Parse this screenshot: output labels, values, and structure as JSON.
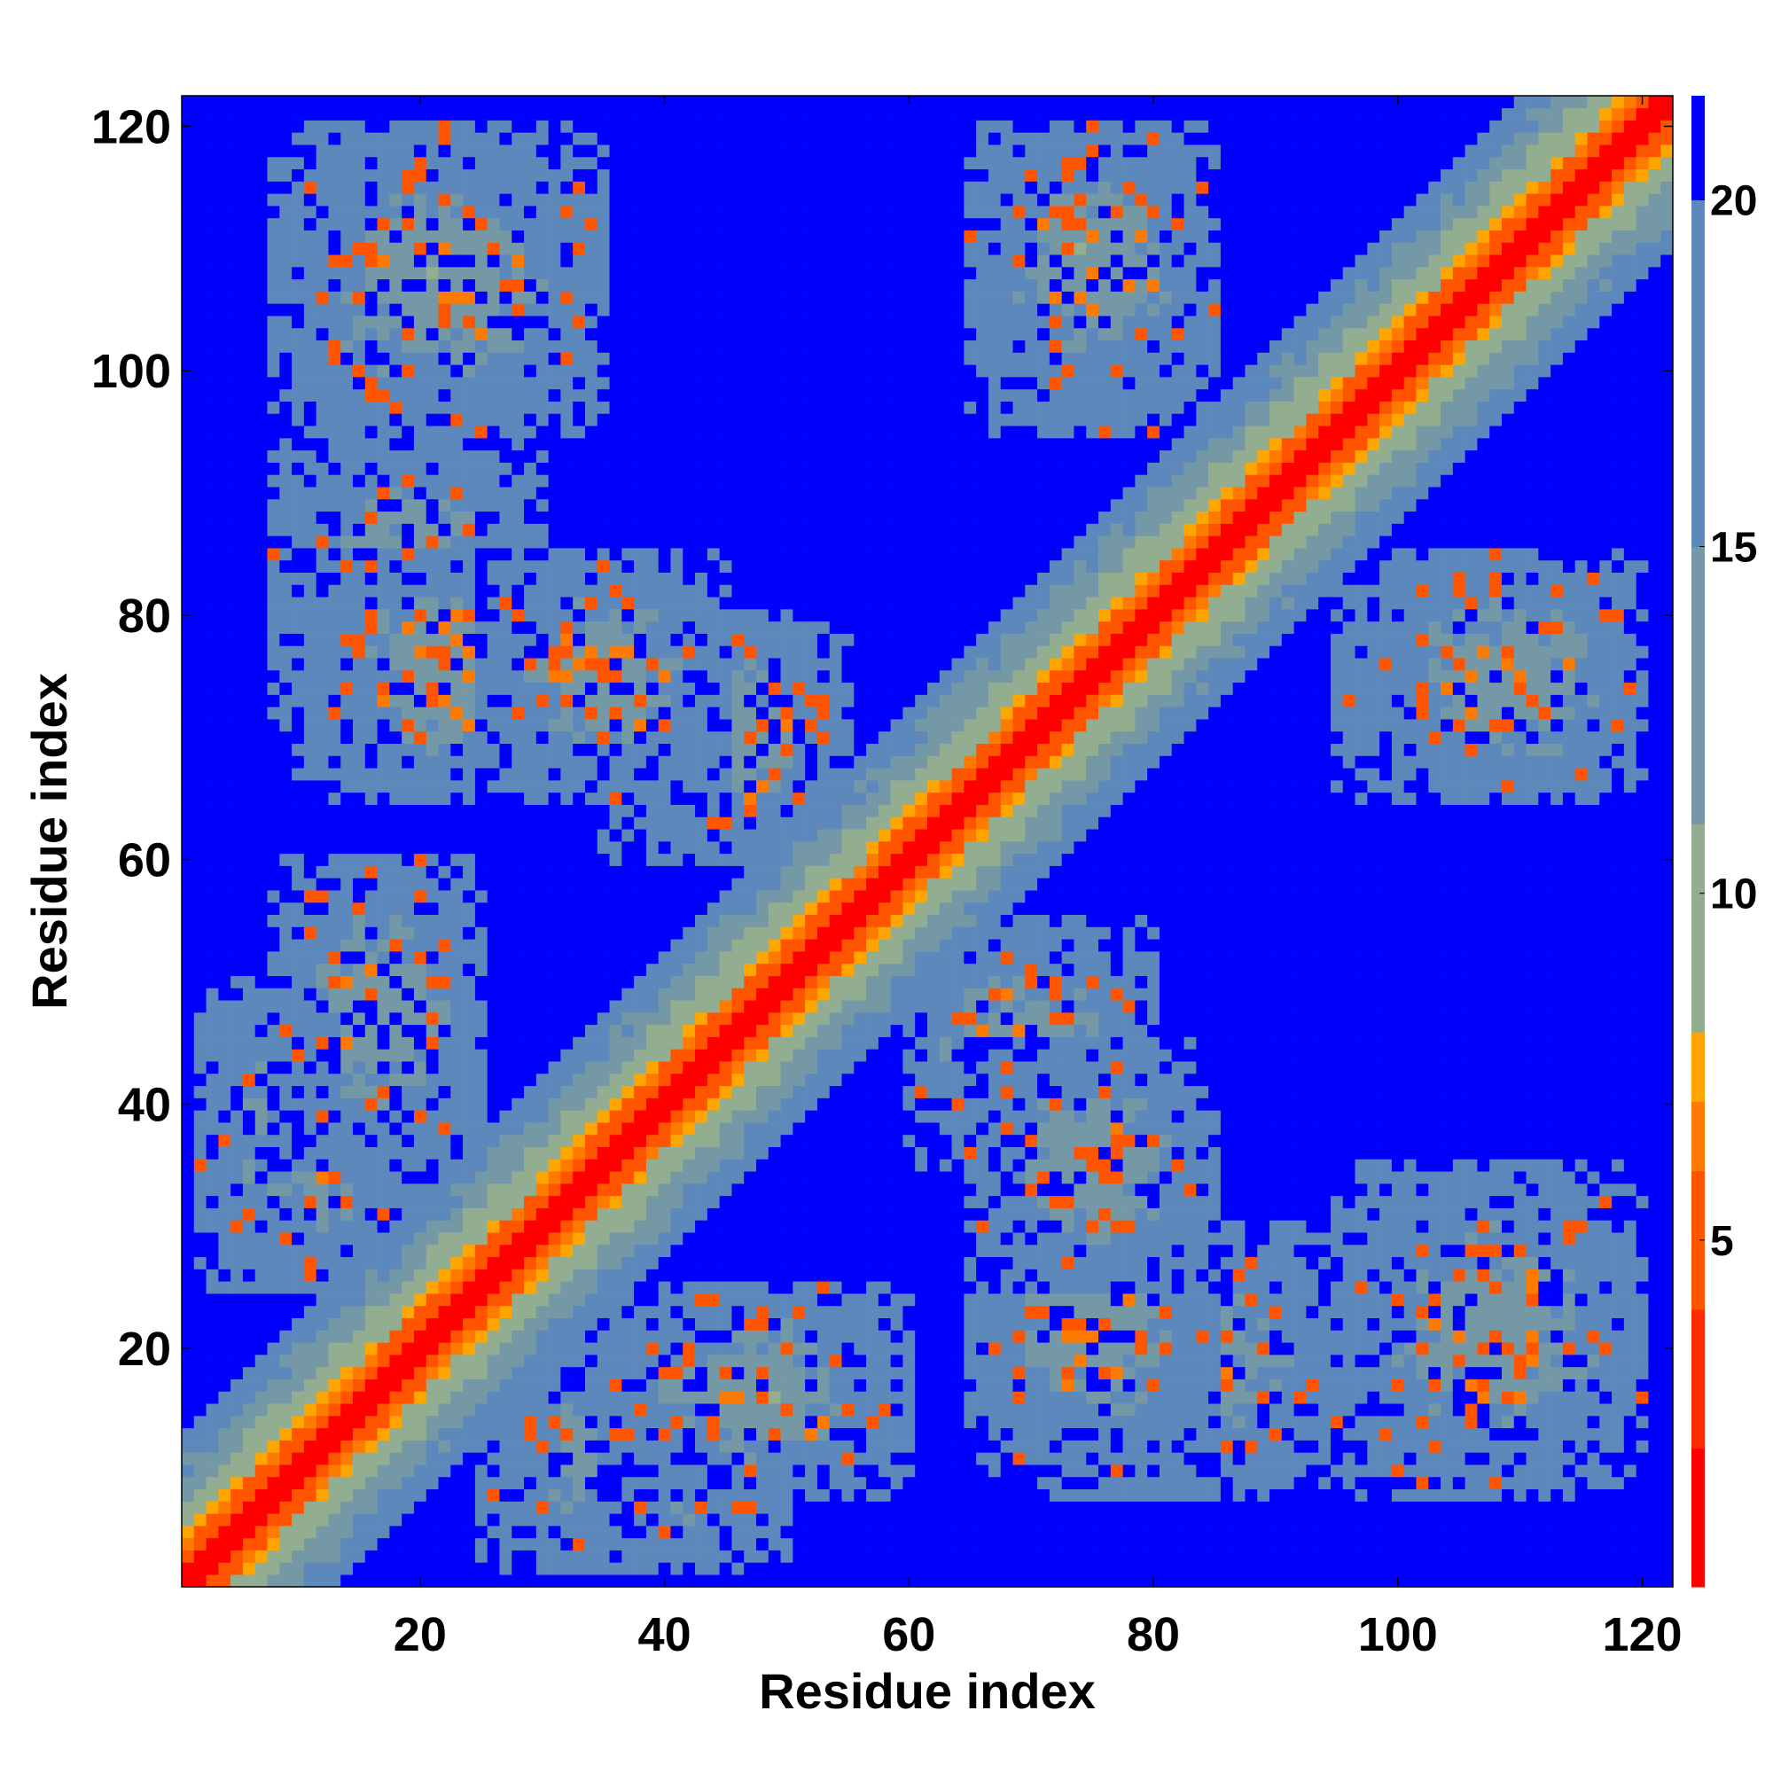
{
  "chart_data": {
    "type": "heatmap",
    "title": "",
    "xlabel": "Residue index",
    "ylabel": "Residue index",
    "xlim": [
      0.5,
      122.5
    ],
    "ylim": [
      0.5,
      122.5
    ],
    "xticks": [
      20,
      40,
      60,
      80,
      100,
      120
    ],
    "yticks": [
      20,
      40,
      60,
      80,
      100,
      120
    ],
    "n_residues": 122,
    "colorbar": {
      "range": [
        0,
        21.5
      ],
      "ticks": [
        5,
        10,
        15,
        20
      ],
      "colors": [
        "#ff0000",
        "#ff2a00",
        "#ff5500",
        "#ff7a00",
        "#ffa500",
        "#92ad8f",
        "#7498a6",
        "#5c88bb",
        "#0000ff"
      ],
      "bounds": [
        0,
        2,
        4,
        6,
        7,
        8,
        11,
        15,
        20,
        21.5
      ]
    },
    "contact_map_description_values": {
      "diagonal_distance": 0,
      "off_range_value": 21.5,
      "structural_blocks": [
        {
          "x": [
            8,
            35
          ],
          "y": [
            95,
            120
          ]
        },
        {
          "x": [
            35,
            60
          ],
          "y": [
            8,
            25
          ]
        },
        {
          "x": [
            65,
            85
          ],
          "y": [
            98,
            120
          ]
        },
        {
          "x": [
            95,
            120
          ],
          "y": [
            65,
            85
          ]
        },
        {
          "x": [
            65,
            85
          ],
          "y": [
            25,
            45
          ]
        },
        {
          "x": [
            95,
            118
          ],
          "y": [
            10,
            35
          ]
        },
        {
          "x": [
            10,
            35
          ],
          "y": [
            65,
            85
          ]
        },
        {
          "x": [
            2,
            20
          ],
          "y": [
            25,
            50
          ]
        },
        {
          "x": [
            35,
            55
          ],
          "y": [
            60,
            80
          ]
        },
        {
          "x": [
            70,
            95
          ],
          "y": [
            8,
            30
          ]
        }
      ]
    }
  }
}
